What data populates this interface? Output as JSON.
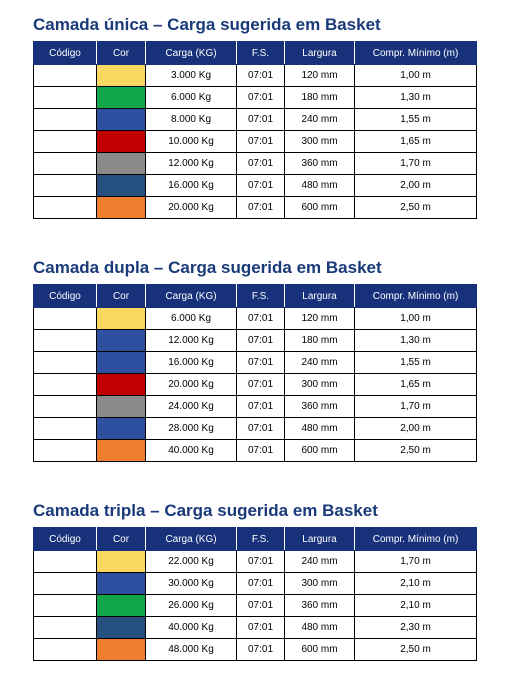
{
  "columns": [
    "Código",
    "Cor",
    "Carga (KG)",
    "F.S.",
    "Largura",
    "Compr. Mínimo (m)"
  ],
  "sections": [
    {
      "title": "Camada única – Carga sugerida em Basket",
      "rows": [
        {
          "codigo": "",
          "cor": "#fbd862",
          "carga": "3.000 Kg",
          "fs": "07:01",
          "largura": "120 mm",
          "compr": "1,00 m"
        },
        {
          "codigo": "",
          "cor": "#12a64a",
          "carga": "6.000 Kg",
          "fs": "07:01",
          "largura": "180 mm",
          "compr": "1,30 m"
        },
        {
          "codigo": "",
          "cor": "#2f4fa0",
          "carga": "8.000 Kg",
          "fs": "07:01",
          "largura": "240 mm",
          "compr": "1,55 m"
        },
        {
          "codigo": "",
          "cor": "#c00000",
          "carga": "10.000 Kg",
          "fs": "07:01",
          "largura": "300 mm",
          "compr": "1,65 m"
        },
        {
          "codigo": "",
          "cor": "#8a8a8a",
          "carga": "12.000 Kg",
          "fs": "07:01",
          "largura": "360 mm",
          "compr": "1,70 m"
        },
        {
          "codigo": "",
          "cor": "#26507f",
          "carga": "16.000 Kg",
          "fs": "07:01",
          "largura": "480 mm",
          "compr": "2,00 m"
        },
        {
          "codigo": "",
          "cor": "#ee7f2e",
          "carga": "20.000 Kg",
          "fs": "07:01",
          "largura": "600 mm",
          "compr": "2,50 m"
        }
      ]
    },
    {
      "title": "Camada dupla – Carga sugerida em Basket",
      "rows": [
        {
          "codigo": "",
          "cor": "#fbd862",
          "carga": "6.000 Kg",
          "fs": "07:01",
          "largura": "120 mm",
          "compr": "1,00 m"
        },
        {
          "codigo": "",
          "cor": "#2f4fa0",
          "carga": "12.000 Kg",
          "fs": "07:01",
          "largura": "180 mm",
          "compr": "1,30 m"
        },
        {
          "codigo": "",
          "cor": "#2f4fa0",
          "carga": "16.000 Kg",
          "fs": "07:01",
          "largura": "240 mm",
          "compr": "1,55 m"
        },
        {
          "codigo": "",
          "cor": "#c00000",
          "carga": "20.000 Kg",
          "fs": "07:01",
          "largura": "300 mm",
          "compr": "1,65 m"
        },
        {
          "codigo": "",
          "cor": "#8a8a8a",
          "carga": "24.000 Kg",
          "fs": "07:01",
          "largura": "360 mm",
          "compr": "1,70 m"
        },
        {
          "codigo": "",
          "cor": "#2f4fa0",
          "carga": "28.000 Kg",
          "fs": "07:01",
          "largura": "480 mm",
          "compr": "2,00 m"
        },
        {
          "codigo": "",
          "cor": "#ee7f2e",
          "carga": "40.000 Kg",
          "fs": "07:01",
          "largura": "600 mm",
          "compr": "2,50 m"
        }
      ]
    },
    {
      "title": "Camada tripla – Carga sugerida em Basket",
      "rows": [
        {
          "codigo": "",
          "cor": "#fbd862",
          "carga": "22.000 Kg",
          "fs": "07:01",
          "largura": "240 mm",
          "compr": "1,70 m"
        },
        {
          "codigo": "",
          "cor": "#2f4fa0",
          "carga": "30.000 Kg",
          "fs": "07:01",
          "largura": "300 mm",
          "compr": "2,10 m"
        },
        {
          "codigo": "",
          "cor": "#12a64a",
          "carga": "26.000 Kg",
          "fs": "07:01",
          "largura": "360 mm",
          "compr": "2,10 m"
        },
        {
          "codigo": "",
          "cor": "#26507f",
          "carga": "40.000 Kg",
          "fs": "07:01",
          "largura": "480 mm",
          "compr": "2,30 m"
        },
        {
          "codigo": "",
          "cor": "#ee7f2e",
          "carga": "48.000 Kg",
          "fs": "07:01",
          "largura": "600 mm",
          "compr": "2,50 m"
        }
      ]
    }
  ]
}
